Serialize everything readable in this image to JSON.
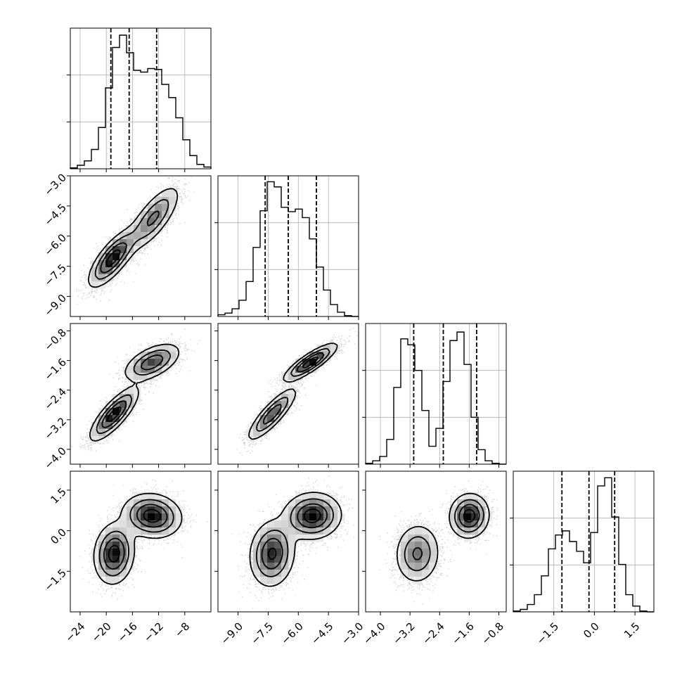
{
  "chart_data": {
    "type": "corner",
    "title": "",
    "parameters": [
      {
        "key": "p0",
        "range": [
          -25.5,
          -4.0
        ],
        "ticks": [
          -24,
          -20,
          -16,
          -12,
          -8
        ],
        "tick_labels": [
          "−24",
          "−20",
          "−16",
          "−12",
          "−8"
        ],
        "quantiles": [
          -19.3,
          -16.5,
          -12.3
        ],
        "hist_grid": true,
        "hist_counts": [
          1,
          4,
          9,
          22,
          47,
          92,
          138,
          152,
          132,
          112,
          110,
          114,
          113,
          96,
          81,
          58,
          33,
          15,
          5,
          2
        ],
        "hist_ymax": 160
      },
      {
        "key": "p1",
        "range": [
          -10.0,
          -3.0
        ],
        "ticks": [
          -9.0,
          -7.5,
          -6.0,
          -4.5,
          -3.0
        ],
        "tick_labels": [
          "−9.0",
          "−7.5",
          "−6.0",
          "−4.5",
          "−3.0"
        ],
        "quantiles": [
          -7.65,
          -6.5,
          -5.1
        ],
        "hist_grid": true,
        "hist_counts": [
          2,
          4,
          9,
          19,
          41,
          81,
          124,
          158,
          152,
          128,
          123,
          126,
          116,
          91,
          58,
          31,
          14,
          5,
          1,
          0
        ],
        "hist_ymax": 165
      },
      {
        "key": "p2",
        "range": [
          -4.4,
          -0.6
        ],
        "ticks": [
          -4.0,
          -3.2,
          -2.4,
          -1.6,
          -0.8
        ],
        "tick_labels": [
          "−4.0",
          "−3.2",
          "−2.4",
          "−1.6",
          "−0.8"
        ],
        "quantiles": [
          -3.1,
          -2.3,
          -1.4
        ],
        "hist_grid": true,
        "hist_counts": [
          1,
          4,
          9,
          29,
          90,
          147,
          140,
          110,
          63,
          21,
          42,
          97,
          145,
          155,
          117,
          55,
          17,
          4,
          1,
          0
        ],
        "hist_ymax": 165
      },
      {
        "key": "p3",
        "range": [
          -3.0,
          2.2
        ],
        "ticks": [
          -1.5,
          0.0,
          1.5
        ],
        "tick_labels": [
          "−1.5",
          "0.0",
          "1.5"
        ],
        "quantiles": [
          -1.2,
          -0.2,
          0.75
        ],
        "hist_grid": true,
        "hist_counts": [
          1,
          3,
          9,
          21,
          44,
          77,
          94,
          99,
          86,
          74,
          60,
          97,
          154,
          164,
          116,
          58,
          21,
          7,
          1,
          0
        ],
        "hist_ymax": 172
      }
    ],
    "pairs": [
      {
        "x": "p0",
        "y": "p1",
        "modes": [
          {
            "mx": -19,
            "my": -7.1,
            "sx": 1.8,
            "sy": 0.7,
            "rho": 0.75,
            "w": 0.55
          },
          {
            "mx": -12.8,
            "my": -5.1,
            "sx": 2.0,
            "sy": 0.8,
            "rho": 0.75,
            "w": 0.45
          }
        ]
      },
      {
        "x": "p0",
        "y": "p2",
        "modes": [
          {
            "mx": -18.8,
            "my": -3.05,
            "sx": 1.8,
            "sy": 0.35,
            "rho": 0.8,
            "w": 0.52
          },
          {
            "mx": -13,
            "my": -1.65,
            "sx": 2.1,
            "sy": 0.25,
            "rho": 0.55,
            "w": 0.48
          }
        ]
      },
      {
        "x": "p0",
        "y": "p3",
        "modes": [
          {
            "mx": -18.8,
            "my": -0.85,
            "sx": 1.5,
            "sy": 0.55,
            "rho": 0.1,
            "w": 0.48
          },
          {
            "mx": -13,
            "my": 0.55,
            "sx": 2.2,
            "sy": 0.4,
            "rho": -0.1,
            "w": 0.52
          }
        ]
      },
      {
        "x": "p1",
        "y": "p2",
        "modes": [
          {
            "mx": -7.3,
            "my": -3.05,
            "sx": 0.6,
            "sy": 0.35,
            "rho": 0.85,
            "w": 0.5
          },
          {
            "mx": -5.4,
            "my": -1.65,
            "sx": 0.65,
            "sy": 0.25,
            "rho": 0.85,
            "w": 0.5
          }
        ]
      },
      {
        "x": "p1",
        "y": "p3",
        "modes": [
          {
            "mx": -7.3,
            "my": -0.85,
            "sx": 0.55,
            "sy": 0.6,
            "rho": 0.1,
            "w": 0.5
          },
          {
            "mx": -5.3,
            "my": 0.55,
            "sx": 0.7,
            "sy": 0.42,
            "rho": 0.05,
            "w": 0.5
          }
        ]
      },
      {
        "x": "p2",
        "y": "p3",
        "modes": [
          {
            "mx": -3.0,
            "my": -0.85,
            "sx": 0.3,
            "sy": 0.55,
            "rho": 0.05,
            "w": 0.5
          },
          {
            "mx": -1.6,
            "my": 0.55,
            "sx": 0.26,
            "sy": 0.4,
            "rho": 0.05,
            "w": 0.5
          }
        ]
      }
    ]
  }
}
